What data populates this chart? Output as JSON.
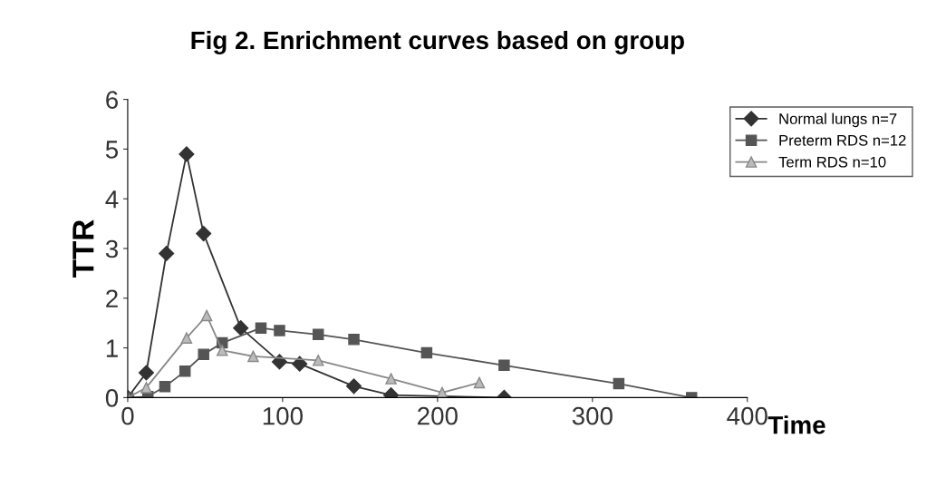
{
  "chart_data": {
    "type": "line",
    "title": "Fig 2. Enrichment curves based on group",
    "xlabel": "Time",
    "ylabel": "TTR",
    "xlim": [
      0,
      400
    ],
    "xticks": [
      0,
      100,
      200,
      300,
      400
    ],
    "ylim": [
      0,
      6
    ],
    "yticks": [
      0,
      1,
      2,
      3,
      4,
      5,
      6
    ],
    "grid": false,
    "legend": "top right",
    "series": [
      {
        "name": "Normal lungs n=7",
        "color": "#333333",
        "marker": "diamond",
        "x": [
          0,
          12,
          25,
          38,
          49,
          73,
          98,
          111,
          146,
          170,
          243
        ],
        "values": [
          0,
          0.5,
          2.9,
          4.9,
          3.3,
          1.4,
          0.72,
          0.68,
          0.23,
          0.05,
          0
        ]
      },
      {
        "name": "Preterm RDS n=12",
        "color": "#555555",
        "marker": "square",
        "x": [
          0,
          13,
          24,
          37,
          49,
          61,
          86,
          98,
          123,
          146,
          193,
          243,
          317,
          364
        ],
        "values": [
          0,
          0.02,
          0.22,
          0.53,
          0.87,
          1.1,
          1.4,
          1.35,
          1.27,
          1.17,
          0.9,
          0.65,
          0.28,
          0
        ]
      },
      {
        "name": "Term RDS n=10",
        "color": "#888888",
        "marker": "triangle",
        "x": [
          0,
          12,
          38,
          51,
          61,
          81,
          123,
          170,
          203,
          227
        ],
        "values": [
          0,
          0.2,
          1.2,
          1.65,
          0.95,
          0.83,
          0.75,
          0.38,
          0.1,
          0.3
        ]
      }
    ]
  }
}
